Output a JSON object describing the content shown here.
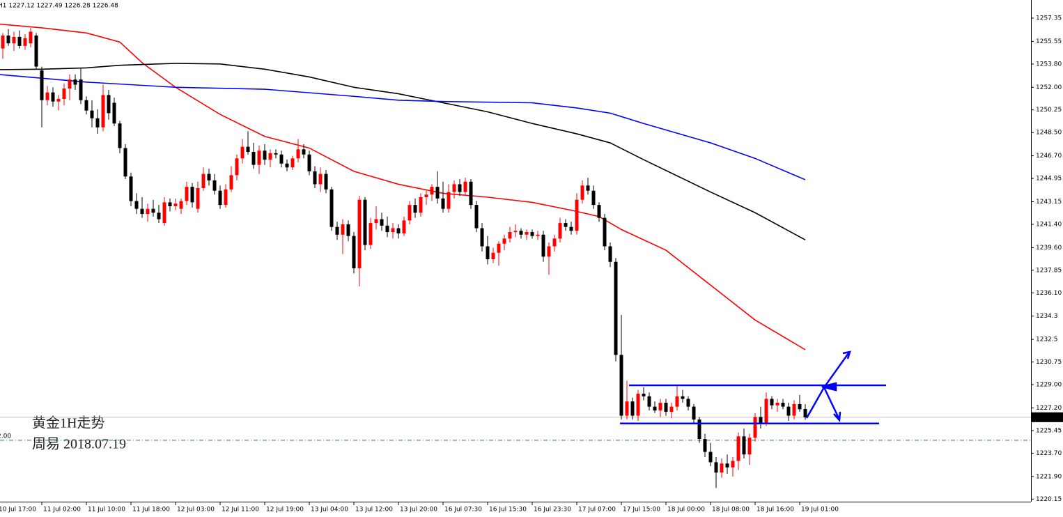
{
  "chart_data": {
    "type": "candlestick",
    "header": "H1 1227.12 1227.49 1226.28 1226.48",
    "annotations": [
      "黄金1H走势",
      "周易  2018.07.19"
    ],
    "reference_line": 1224.7,
    "reference_label": "2.00",
    "reference_color": "#2e7d32",
    "up_color": "#ff0000",
    "down_color": "#000000",
    "ylim": [
      1219.95,
      1258.75
    ],
    "yticks": [
      {
        "value": 1257.35,
        "label": "1257.35"
      },
      {
        "value": 1255.55,
        "label": "1255.55"
      },
      {
        "value": 1253.8,
        "label": "1253.80"
      },
      {
        "value": 1252.0,
        "label": "1252.00"
      },
      {
        "value": 1250.25,
        "label": "1250.25"
      },
      {
        "value": 1248.5,
        "label": "1248.50"
      },
      {
        "value": 1246.7,
        "label": "1246.70"
      },
      {
        "value": 1244.95,
        "label": "1244.95"
      },
      {
        "value": 1243.15,
        "label": "1243.15"
      },
      {
        "value": 1241.4,
        "label": "1241.40"
      },
      {
        "value": 1239.6,
        "label": "1239.60"
      },
      {
        "value": 1237.85,
        "label": "1237.85"
      },
      {
        "value": 1236.1,
        "label": "1236.10"
      },
      1234.3,
      1232.5,
      {
        "value": 1230.75,
        "label": "1230.75"
      },
      {
        "value": 1229.0,
        "label": "1229.00"
      },
      {
        "value": 1227.2,
        "label": "1227.20"
      },
      {
        "value": 1225.45,
        "label": "1225.45"
      },
      {
        "value": 1223.7,
        "label": "1223.70"
      },
      {
        "value": 1221.9,
        "label": "1221.90"
      },
      {
        "value": 1220.15,
        "label": "1220.15"
      }
    ],
    "categories": [
      "10 Jul 17:00",
      null,
      null,
      null,
      null,
      null,
      null,
      null,
      "11 Jul 02:00",
      null,
      null,
      null,
      null,
      null,
      null,
      null,
      "11 Jul 10:00",
      null,
      null,
      null,
      null,
      null,
      null,
      null,
      "11 Jul 18:00",
      null,
      null,
      null,
      null,
      null,
      null,
      null,
      "12 Jul 03:00",
      null,
      null,
      null,
      null,
      null,
      null,
      null,
      "12 Jul 11:00",
      null,
      null,
      null,
      null,
      null,
      null,
      null,
      "12 Jul 19:00",
      null,
      null,
      null,
      null,
      null,
      null,
      null,
      "13 Jul 04:00",
      null,
      null,
      null,
      null,
      null,
      null,
      null,
      "13 Jul 12:00",
      null,
      null,
      null,
      null,
      null,
      null,
      null,
      "13 Jul 20:00",
      null,
      null,
      null,
      null,
      null,
      null,
      null,
      "16 Jul 07:30",
      null,
      null,
      null,
      null,
      null,
      null,
      null,
      "16 Jul 15:30",
      null,
      null,
      null,
      null,
      null,
      null,
      null,
      "16 Jul 23:30",
      null,
      null,
      null,
      null,
      null,
      null,
      null,
      "17 Jul 07:00",
      null,
      null,
      null,
      null,
      null,
      null,
      null,
      "17 Jul 15:00",
      null,
      null,
      null,
      null,
      null,
      null,
      null,
      "18 Jul 00:00",
      null,
      null,
      null,
      null,
      null,
      null,
      null,
      "18 Jul 08:00",
      null,
      null,
      null,
      null,
      null,
      null,
      null,
      "18 Jul 16:00",
      null,
      null,
      null,
      null,
      null,
      null,
      null,
      "19 Jul 01:00",
      null
    ],
    "open": [
      1255.0,
      1255.0,
      1256.0,
      1255.4,
      1255.9,
      1255.2,
      1255.4,
      1256.0,
      1253.3,
      1251.0,
      1251.6,
      1250.9,
      1251.1,
      1251.9,
      1252.6,
      1252.6,
      1251.0,
      1250.2,
      1249.6,
      1248.9,
      1251.4,
      1250.8,
      1249.2,
      1247.3,
      1245.1,
      1243.2,
      1242.6,
      1242.2,
      1242.6,
      1242.3,
      1241.5,
      1243.1,
      1242.8,
      1242.6,
      1243.2,
      1244.3,
      1242.6,
      1244.2,
      1245.3,
      1244.8,
      1244.0,
      1242.9,
      1244.1,
      1245.2,
      1246.5,
      1247.4,
      1247.0,
      1246.0,
      1247.1,
      1246.4,
      1246.9,
      1246.8,
      1246.1,
      1245.8,
      1246.5,
      1247.2,
      1246.8,
      1245.5,
      1244.5,
      1245.3,
      1244.1,
      1241.2,
      1240.6,
      1241.4,
      1240.5,
      1238.0,
      1243.3,
      1239.8,
      1241.5,
      1241.8,
      1241.3,
      1240.8,
      1241.1,
      1240.7,
      1241.7,
      1242.9,
      1242.3,
      1243.5,
      1243.7,
      1244.3,
      1243.4,
      1242.6,
      1243.9,
      1244.5,
      1243.9,
      1244.7,
      1242.9,
      1241.1,
      1239.7,
      1238.7,
      1239.2,
      1239.9,
      1240.3,
      1240.8,
      1240.9,
      1240.6,
      1240.8,
      1240.5,
      1240.6,
      1238.9,
      1239.7,
      1240.3,
      1241.5,
      1241.2,
      1240.9,
      1243.3,
      1244.4,
      1244.0,
      1242.9,
      1241.9,
      1239.7,
      1238.5,
      1231.3,
      1226.6,
      1227.7,
      1226.6,
      1228.3,
      1228.1,
      1227.3,
      1227.0,
      1227.6,
      1226.9,
      1227.3,
      1228.1,
      1227.9,
      1227.3,
      1226.3,
      1224.8,
      1223.8,
      1223.0,
      1222.2,
      1222.9,
      1222.6,
      1223.1,
      1225.0,
      1223.6,
      1224.9,
      1226.5,
      1226.0,
      1227.9,
      1227.4,
      1227.6,
      1227.3,
      1226.6,
      1227.5,
      1227.12
    ],
    "high": [
      1256.0,
      1256.2,
      1256.5,
      1256.3,
      1256.4,
      1256.1,
      1256.6,
      1256.2,
      1253.6,
      1252.1,
      1252.0,
      1251.4,
      1252.3,
      1253.0,
      1253.0,
      1253.5,
      1251.3,
      1251.0,
      1250.3,
      1252.2,
      1251.8,
      1251.2,
      1249.4,
      1247.6,
      1245.4,
      1243.8,
      1243.5,
      1243.0,
      1243.3,
      1242.9,
      1243.5,
      1243.4,
      1243.4,
      1243.4,
      1244.7,
      1244.6,
      1244.7,
      1245.8,
      1245.7,
      1245.3,
      1244.4,
      1244.5,
      1245.9,
      1246.8,
      1248.0,
      1248.6,
      1247.7,
      1247.5,
      1247.6,
      1247.2,
      1247.2,
      1247.1,
      1246.4,
      1246.7,
      1248.0,
      1247.6,
      1247.1,
      1245.9,
      1245.8,
      1245.6,
      1244.3,
      1241.6,
      1241.8,
      1241.7,
      1240.8,
      1243.6,
      1243.5,
      1241.9,
      1242.8,
      1242.3,
      1242.0,
      1241.5,
      1241.4,
      1242.0,
      1243.2,
      1243.4,
      1243.8,
      1244.0,
      1244.5,
      1245.5,
      1244.7,
      1244.5,
      1244.8,
      1244.9,
      1245.0,
      1244.9,
      1243.2,
      1241.5,
      1240.5,
      1239.6,
      1240.1,
      1240.6,
      1241.2,
      1241.4,
      1241.1,
      1241.0,
      1241.0,
      1240.9,
      1240.9,
      1240.0,
      1240.6,
      1241.9,
      1241.8,
      1241.6,
      1243.8,
      1244.8,
      1245.0,
      1244.4,
      1243.1,
      1242.2,
      1240.0,
      1238.8,
      1234.4,
      1229.3,
      1228.0,
      1228.6,
      1228.8,
      1228.4,
      1227.7,
      1227.9,
      1227.9,
      1227.6,
      1229.0,
      1228.6,
      1228.1,
      1227.5,
      1226.5,
      1225.2,
      1224.5,
      1223.4,
      1223.3,
      1223.6,
      1223.4,
      1225.3,
      1225.6,
      1225.2,
      1226.8,
      1227.3,
      1228.4,
      1228.1,
      1227.9,
      1227.9,
      1227.6,
      1227.8,
      1228.2,
      1227.49
    ],
    "low": [
      1254.5,
      1254.2,
      1255.2,
      1254.8,
      1255.0,
      1254.9,
      1255.1,
      1253.4,
      1248.9,
      1250.6,
      1250.5,
      1250.2,
      1250.6,
      1251.0,
      1251.8,
      1250.7,
      1249.9,
      1248.9,
      1248.4,
      1248.6,
      1249.5,
      1249.0,
      1246.9,
      1244.9,
      1242.8,
      1242.2,
      1241.9,
      1241.6,
      1242.0,
      1241.5,
      1241.3,
      1242.4,
      1242.5,
      1242.2,
      1242.9,
      1242.7,
      1242.3,
      1244.0,
      1244.4,
      1243.7,
      1242.6,
      1242.7,
      1243.9,
      1244.8,
      1246.1,
      1246.8,
      1245.7,
      1245.3,
      1246.0,
      1245.8,
      1246.5,
      1245.8,
      1245.5,
      1245.6,
      1246.2,
      1246.5,
      1245.2,
      1244.2,
      1243.9,
      1243.8,
      1240.9,
      1240.2,
      1239.1,
      1240.1,
      1237.6,
      1236.6,
      1239.4,
      1239.5,
      1241.0,
      1240.9,
      1240.4,
      1240.3,
      1240.3,
      1240.5,
      1241.4,
      1241.9,
      1242.0,
      1242.9,
      1243.2,
      1243.0,
      1242.3,
      1242.3,
      1243.4,
      1243.6,
      1243.6,
      1242.6,
      1240.8,
      1239.3,
      1238.3,
      1238.4,
      1238.2,
      1239.4,
      1240.0,
      1240.4,
      1240.3,
      1240.2,
      1240.3,
      1240.2,
      1238.5,
      1237.5,
      1239.3,
      1240.0,
      1240.9,
      1240.6,
      1240.6,
      1243.0,
      1243.7,
      1242.6,
      1241.6,
      1239.4,
      1238.1,
      1230.8,
      1226.3,
      1226.3,
      1226.3,
      1226.2,
      1227.8,
      1227.0,
      1226.8,
      1226.5,
      1226.6,
      1226.4,
      1227.0,
      1227.6,
      1227.0,
      1226.0,
      1224.5,
      1223.4,
      1222.7,
      1221.0,
      1221.8,
      1222.1,
      1221.9,
      1222.4,
      1223.3,
      1222.8,
      1224.6,
      1225.6,
      1225.8,
      1227.1,
      1226.9,
      1227.1,
      1226.2,
      1226.3,
      1226.9,
      1226.28
    ],
    "close": [
      1255.6,
      1256.0,
      1255.4,
      1255.9,
      1255.2,
      1255.8,
      1256.3,
      1253.6,
      1251.0,
      1251.6,
      1250.9,
      1251.1,
      1251.9,
      1252.6,
      1252.2,
      1251.0,
      1250.2,
      1249.6,
      1248.9,
      1251.4,
      1250.0,
      1249.2,
      1247.3,
      1245.1,
      1243.2,
      1242.6,
      1242.2,
      1242.6,
      1242.3,
      1241.8,
      1243.1,
      1242.8,
      1243.0,
      1243.2,
      1244.3,
      1243.1,
      1244.2,
      1245.3,
      1244.8,
      1244.0,
      1242.9,
      1244.1,
      1245.2,
      1246.5,
      1247.4,
      1247.0,
      1246.0,
      1247.1,
      1246.4,
      1246.9,
      1246.8,
      1246.1,
      1245.8,
      1246.5,
      1247.2,
      1246.8,
      1245.5,
      1244.5,
      1245.3,
      1244.1,
      1241.2,
      1240.6,
      1241.4,
      1240.5,
      1238.0,
      1243.3,
      1239.8,
      1241.5,
      1241.8,
      1241.3,
      1240.8,
      1241.1,
      1240.7,
      1241.7,
      1242.9,
      1242.3,
      1243.5,
      1243.7,
      1244.3,
      1243.4,
      1242.6,
      1243.9,
      1244.5,
      1243.9,
      1244.7,
      1242.9,
      1241.1,
      1239.7,
      1238.7,
      1239.2,
      1239.9,
      1240.3,
      1240.8,
      1240.9,
      1240.6,
      1240.8,
      1240.5,
      1240.6,
      1238.9,
      1239.7,
      1240.3,
      1241.5,
      1241.2,
      1240.9,
      1243.3,
      1244.4,
      1244.0,
      1242.9,
      1241.9,
      1239.7,
      1238.5,
      1231.3,
      1226.6,
      1227.7,
      1226.6,
      1228.3,
      1228.1,
      1227.3,
      1227.0,
      1227.6,
      1226.9,
      1227.3,
      1228.1,
      1227.9,
      1227.3,
      1226.3,
      1224.8,
      1223.8,
      1223.0,
      1222.2,
      1222.9,
      1222.6,
      1223.1,
      1225.0,
      1223.6,
      1224.9,
      1226.5,
      1226.0,
      1227.9,
      1227.4,
      1227.6,
      1227.3,
      1226.6,
      1227.5,
      1227.1,
      1226.48
    ],
    "lines": [
      {
        "color": "#ff0000",
        "x": [
          0,
          8,
          16,
          22,
          26,
          32,
          40,
          48,
          56,
          64,
          72,
          80,
          88,
          96,
          104,
          108,
          112,
          120,
          128,
          136,
          145
        ],
        "values": [
          1256.9,
          1256.6,
          1256.2,
          1255.5,
          1253.9,
          1252.0,
          1249.9,
          1248.2,
          1247.3,
          1245.5,
          1244.5,
          1243.8,
          1243.5,
          1243.1,
          1242.4,
          1242.0,
          1241.0,
          1239.4,
          1236.7,
          1234.0,
          1231.7
        ]
      },
      {
        "color": "#000000",
        "x": [
          0,
          8,
          16,
          22,
          32,
          40,
          48,
          56,
          64,
          72,
          80,
          88,
          96,
          104,
          110,
          116,
          128,
          136,
          145
        ],
        "values": [
          1253.36,
          1253.4,
          1253.5,
          1253.7,
          1253.85,
          1253.8,
          1253.4,
          1252.8,
          1252.0,
          1251.5,
          1250.8,
          1250.1,
          1249.2,
          1248.4,
          1247.7,
          1246.4,
          1243.9,
          1242.3,
          1240.2
        ]
      },
      {
        "color": "#0000ff",
        "x": [
          0,
          16,
          32,
          48,
          64,
          72,
          80,
          96,
          104,
          110,
          116,
          128,
          136,
          145
        ],
        "values": [
          1253.0,
          1252.4,
          1252.0,
          1251.85,
          1251.3,
          1251.0,
          1250.9,
          1250.8,
          1250.4,
          1250.0,
          1249.2,
          1247.7,
          1246.5,
          1244.85
        ]
      }
    ],
    "drawn_levels": {
      "color": "#0000ff",
      "values": [
        1228.95,
        1226.0
      ]
    }
  }
}
